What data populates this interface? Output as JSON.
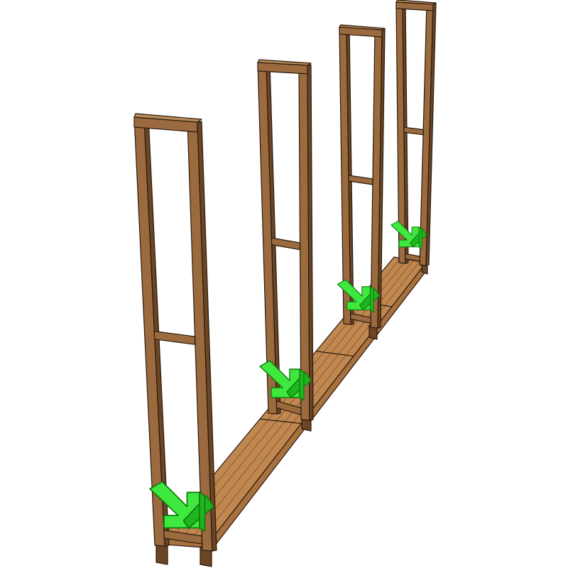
{
  "diagram": {
    "subject": "firewood-rack-assembly",
    "frame_count": 4,
    "arrow_count": 4
  },
  "colors": {
    "background": "#ffffff",
    "wood_front": "#9b6b3f",
    "wood_side": "#6b4524",
    "wood_top": "#b98a5a",
    "deck": "#c08850",
    "deck_dark": "#a8713d",
    "deck_groove": "#8a5a30",
    "outline": "#2a1a0e",
    "arrow_fill": "#3ee83e",
    "arrow_shade": "#1fb51f",
    "arrow_outline": "#0e7a0e"
  }
}
